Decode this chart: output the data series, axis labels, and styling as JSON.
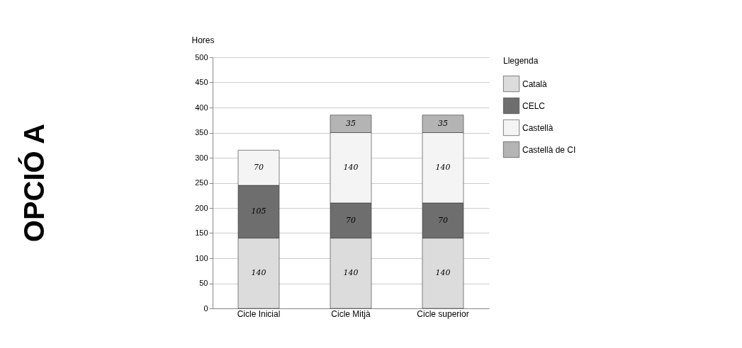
{
  "chart_data": {
    "type": "bar",
    "stacked": true,
    "title": "OPCIÓ A",
    "ylabel": "Hores",
    "legend_title": "Llegenda",
    "categories": [
      "Cicle Inicial",
      "Cicle Mitjà",
      "Cicle superior"
    ],
    "series": [
      {
        "name": "Català",
        "color": "#dcdcdc",
        "values": [
          140,
          140,
          140
        ]
      },
      {
        "name": "CELC",
        "color": "#6e6e6e",
        "values": [
          105,
          70,
          70
        ]
      },
      {
        "name": "Castellà",
        "color": "#f4f4f4",
        "values": [
          70,
          140,
          140
        ]
      },
      {
        "name": "Castellà de CI",
        "color": "#b4b4b4",
        "values": [
          null,
          35,
          35
        ]
      }
    ],
    "ylim": [
      0,
      500
    ],
    "yticks": [
      0,
      50,
      100,
      150,
      200,
      250,
      300,
      350,
      400,
      450,
      500
    ],
    "grid": "y",
    "legend": "right",
    "data_labels": true
  }
}
